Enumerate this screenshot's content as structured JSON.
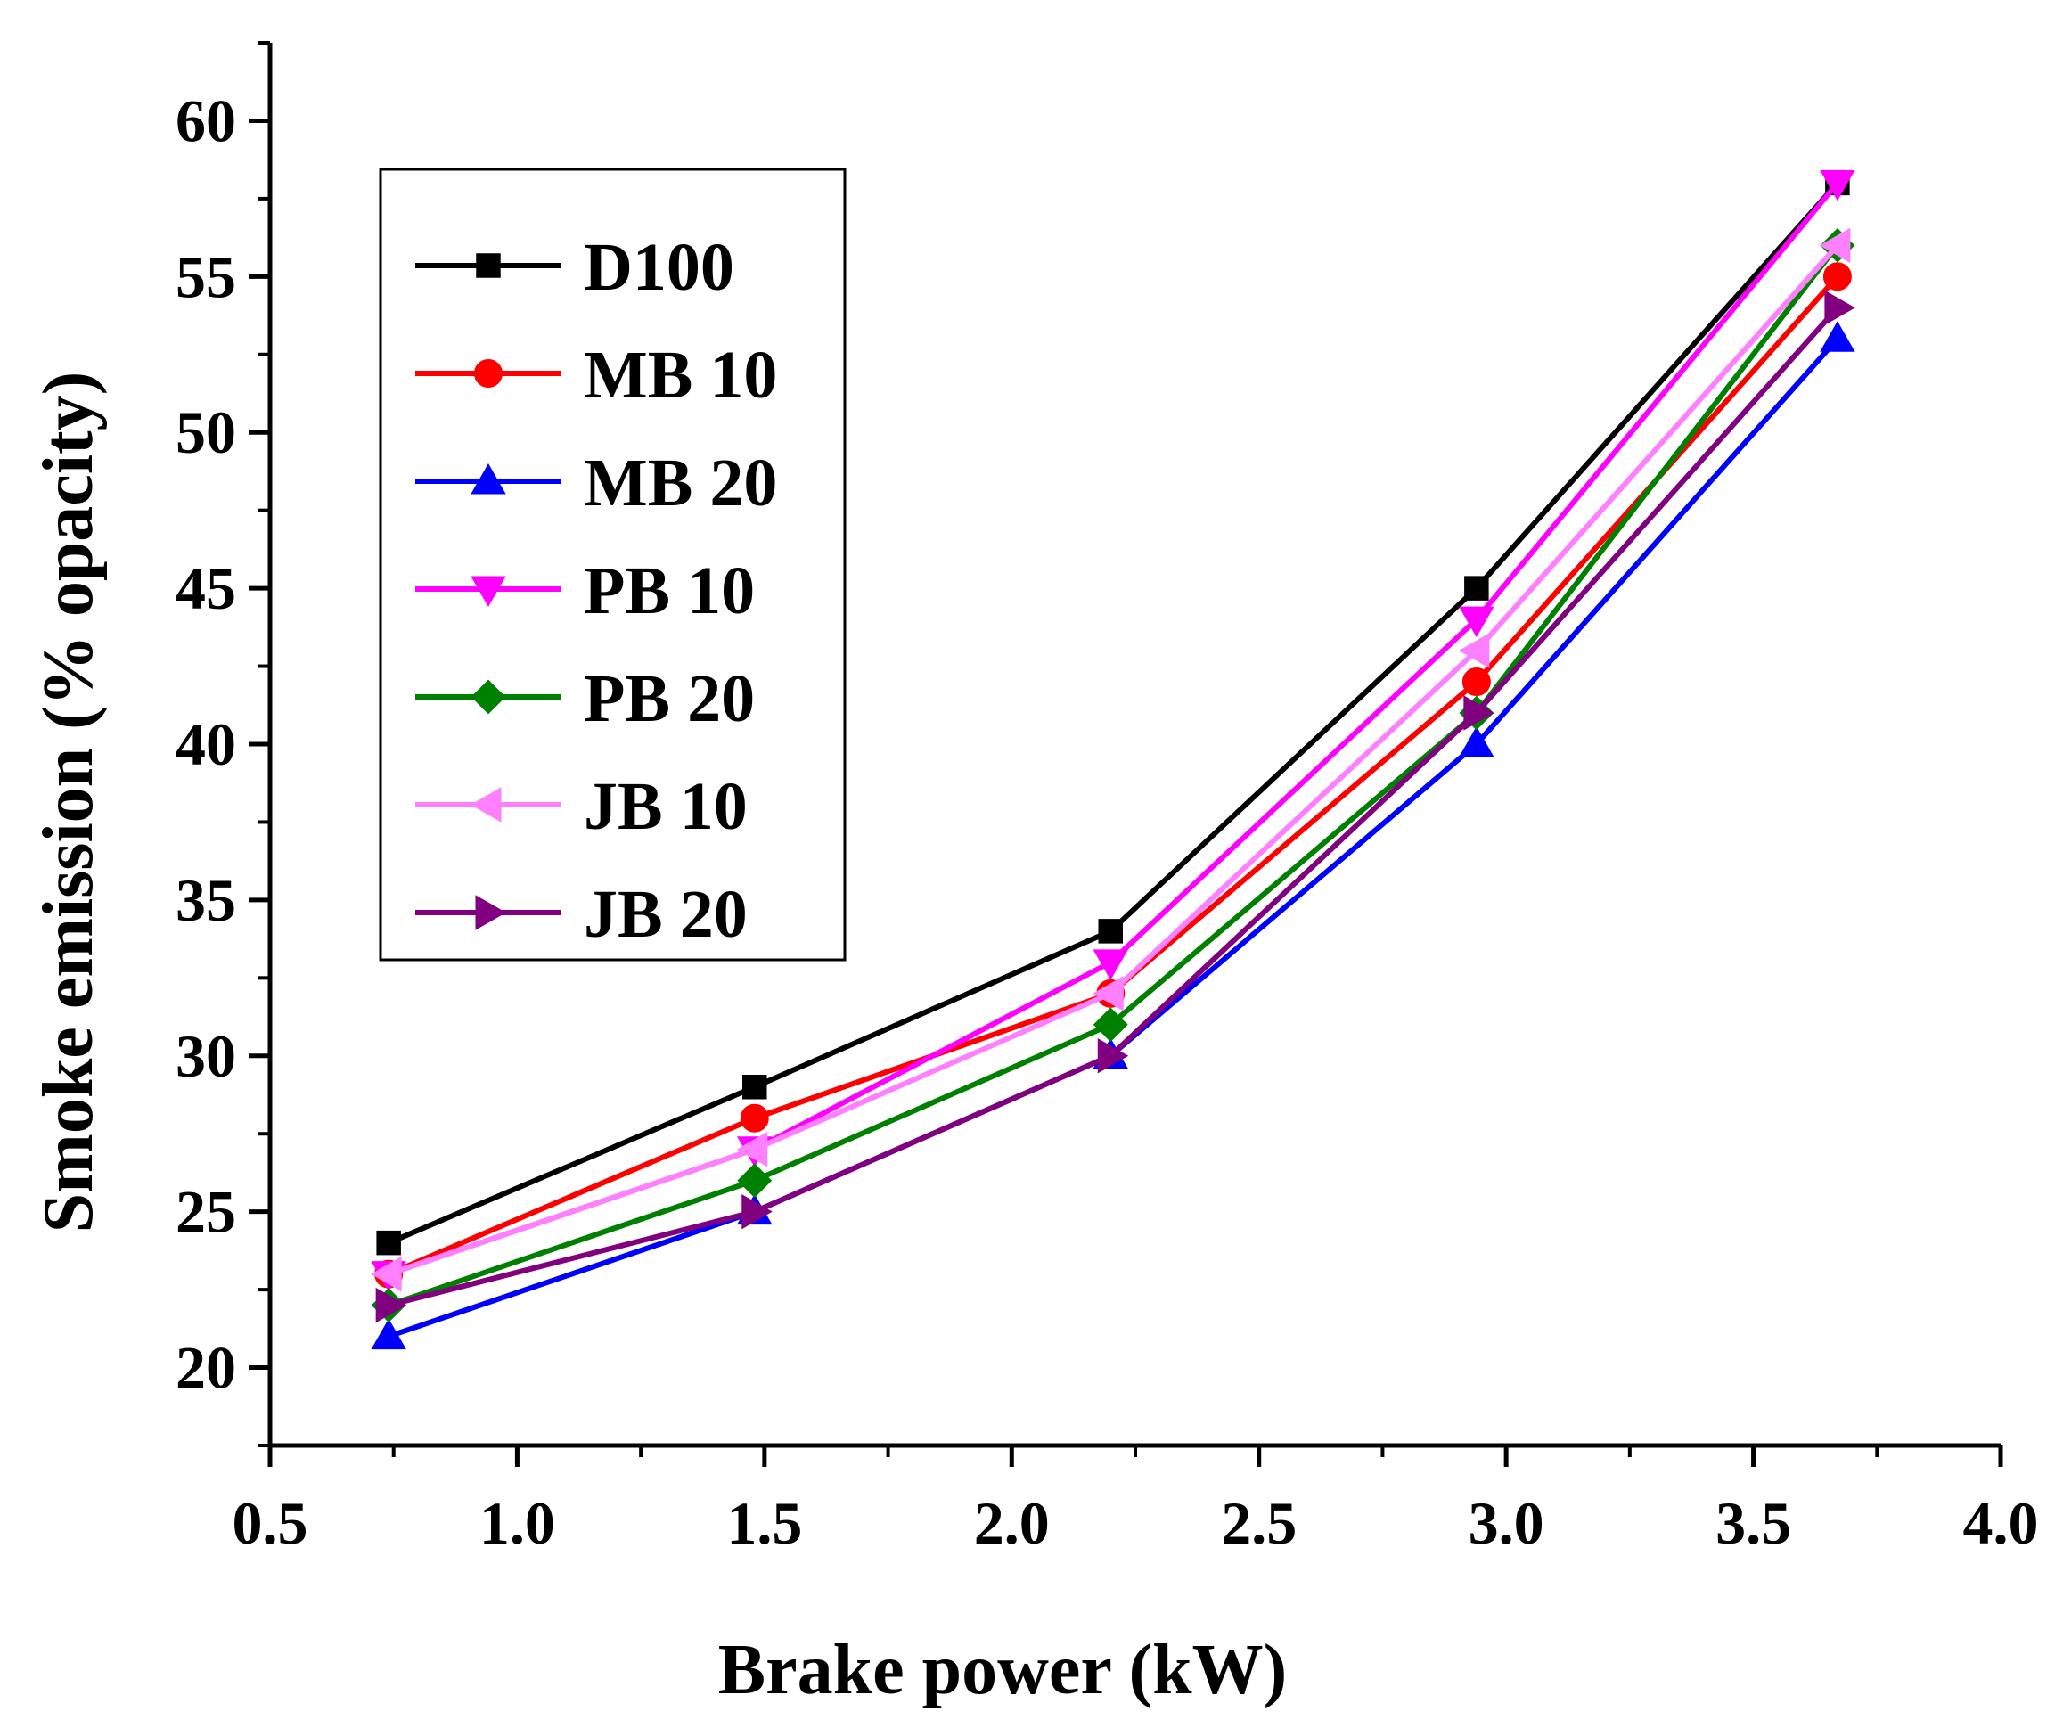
{
  "chart_data": {
    "type": "line",
    "title": "",
    "xlabel": "Brake power (kW)",
    "ylabel": "Smoke emission (% opacity)",
    "xlim": [
      0.5,
      4.0
    ],
    "ylim": [
      17.5,
      62.5
    ],
    "xticks": [
      "0.5",
      "1.0",
      "1.5",
      "2.0",
      "2.5",
      "3.0",
      "3.5",
      "4.0"
    ],
    "xtick_values": [
      0.5,
      1.0,
      1.5,
      2.0,
      2.5,
      3.0,
      3.5,
      4.0
    ],
    "yticks": [
      "20",
      "25",
      "30",
      "35",
      "40",
      "45",
      "50",
      "55",
      "60"
    ],
    "ytick_values": [
      20,
      25,
      30,
      35,
      40,
      45,
      50,
      55,
      60
    ],
    "grid": false,
    "legend_position": "top-left",
    "x": [
      0.74,
      1.48,
      2.2,
      2.94,
      3.67
    ],
    "series": [
      {
        "name": "D100",
        "color": "#000000",
        "marker": "square",
        "values": [
          24,
          29,
          34,
          45,
          58
        ]
      },
      {
        "name": "MB 10",
        "color": "#ff0000",
        "marker": "circle",
        "values": [
          23,
          28,
          32,
          42,
          55
        ]
      },
      {
        "name": "MB 20",
        "color": "#0000ff",
        "marker": "triangle-up",
        "values": [
          21,
          25,
          30,
          40,
          53
        ]
      },
      {
        "name": "PB 10",
        "color": "#ff00ff",
        "marker": "triangle-down",
        "values": [
          23,
          27,
          33,
          44,
          58
        ]
      },
      {
        "name": "PB 20",
        "color": "#008000",
        "marker": "diamond",
        "values": [
          22,
          26,
          31,
          41,
          56
        ]
      },
      {
        "name": "JB 10",
        "color": "#ff80ff",
        "marker": "triangle-left",
        "values": [
          23,
          27,
          32,
          43,
          56
        ]
      },
      {
        "name": "JB 20",
        "color": "#800080",
        "marker": "triangle-right",
        "values": [
          22,
          25,
          30,
          41,
          54
        ]
      }
    ]
  }
}
